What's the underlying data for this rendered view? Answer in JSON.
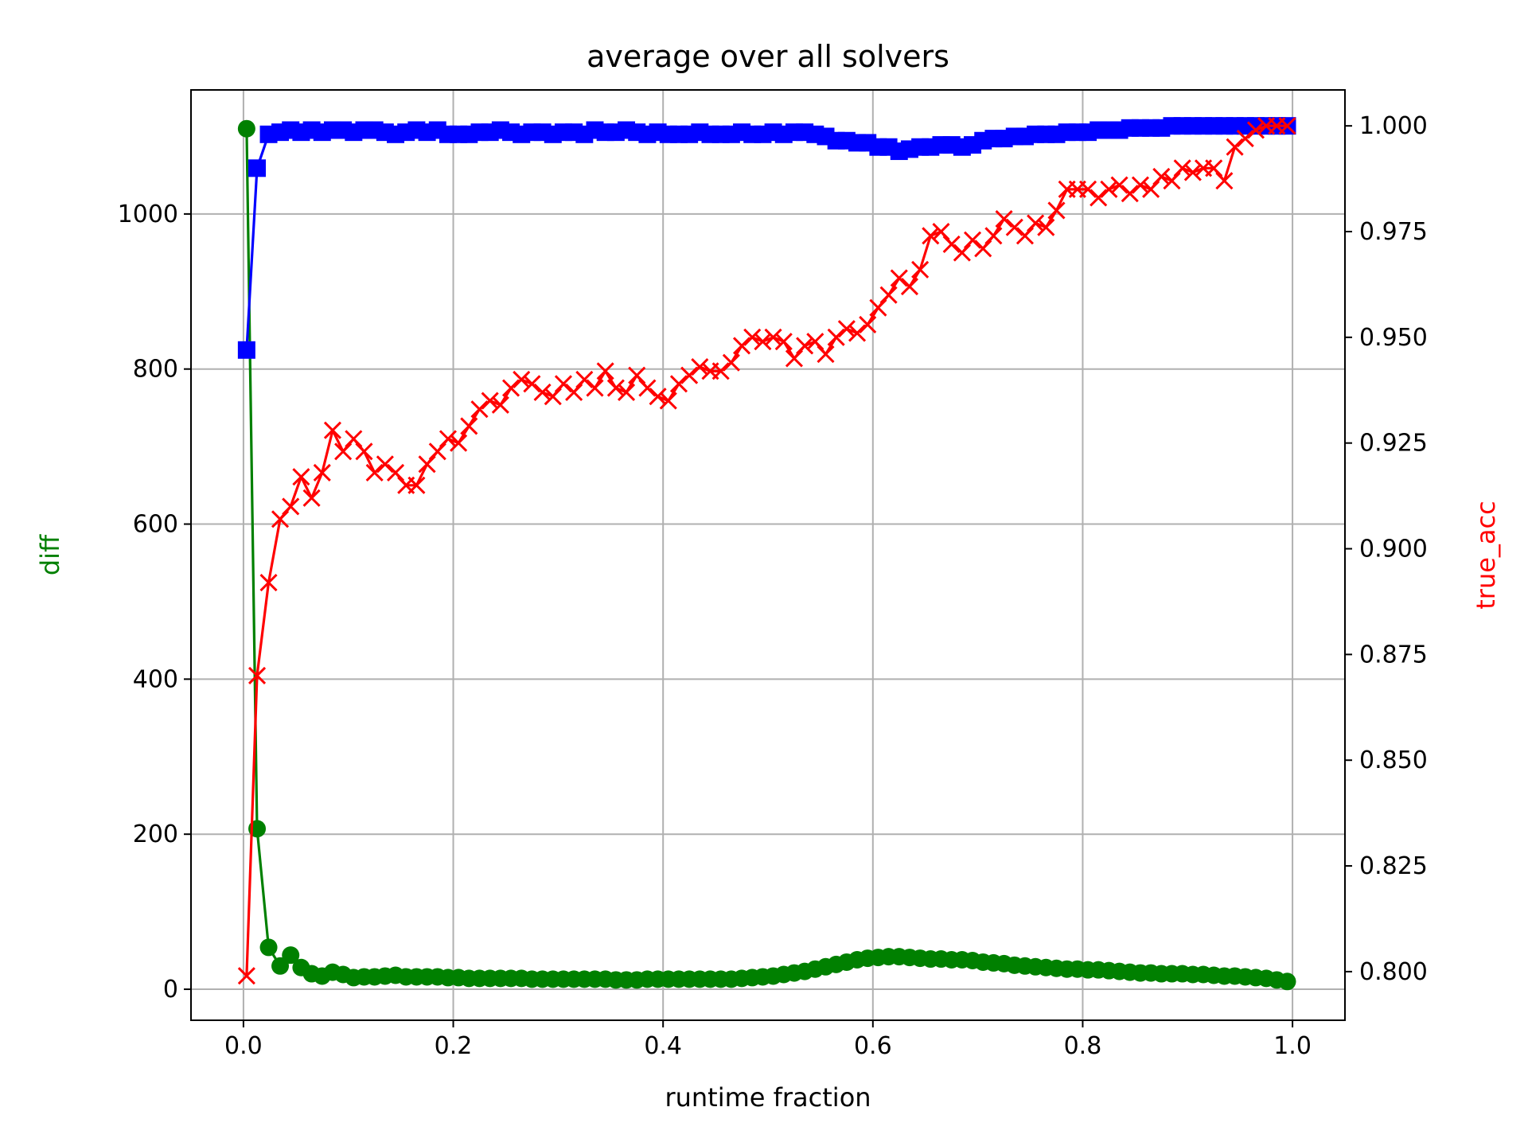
{
  "chart_data": {
    "type": "line",
    "title": "average over all solvers",
    "xlabel": "runtime fraction",
    "ylabel_left": "diff",
    "ylabel_right": "true_acc",
    "xlim": [
      -0.05,
      1.05
    ],
    "ylim_left": [
      -40,
      1160
    ],
    "ylim_right": [
      0.7885,
      1.0085
    ],
    "x_ticks": [
      0.0,
      0.2,
      0.4,
      0.6,
      0.8,
      1.0
    ],
    "x_tick_labels": [
      "0.0",
      "0.2",
      "0.4",
      "0.6",
      "0.8",
      "1.0"
    ],
    "y_left_ticks": [
      0,
      200,
      400,
      600,
      800,
      1000
    ],
    "y_left_tick_labels": [
      "0",
      "200",
      "400",
      "600",
      "800",
      "1000"
    ],
    "y_right_ticks": [
      0.8,
      0.825,
      0.85,
      0.875,
      0.9,
      0.925,
      0.95,
      0.975,
      1.0
    ],
    "y_right_tick_labels": [
      "0.800",
      "0.825",
      "0.850",
      "0.875",
      "0.900",
      "0.925",
      "0.950",
      "0.975",
      "1.000"
    ],
    "grid": true,
    "colors": {
      "diff": "#008000",
      "blue_series": "#0000ff",
      "true_acc": "#ff0000",
      "grid": "#b0b0b0",
      "axes": "#000000",
      "ylabel_left": "#008000",
      "ylabel_right": "#ff0000"
    },
    "series": [
      {
        "key": "diff",
        "axis": "left",
        "marker": "circle",
        "color": "#008000",
        "x": [
          0.003,
          0.013,
          0.024,
          0.035,
          0.045,
          0.055,
          0.065,
          0.075,
          0.085,
          0.095,
          0.105,
          0.115,
          0.125,
          0.135,
          0.145,
          0.155,
          0.165,
          0.175,
          0.185,
          0.195,
          0.205,
          0.215,
          0.225,
          0.235,
          0.245,
          0.255,
          0.265,
          0.275,
          0.285,
          0.295,
          0.305,
          0.315,
          0.325,
          0.335,
          0.345,
          0.355,
          0.365,
          0.375,
          0.385,
          0.395,
          0.405,
          0.415,
          0.425,
          0.435,
          0.445,
          0.455,
          0.465,
          0.475,
          0.485,
          0.495,
          0.505,
          0.515,
          0.525,
          0.535,
          0.545,
          0.555,
          0.565,
          0.575,
          0.585,
          0.595,
          0.605,
          0.615,
          0.625,
          0.635,
          0.645,
          0.655,
          0.665,
          0.675,
          0.685,
          0.695,
          0.705,
          0.715,
          0.725,
          0.735,
          0.745,
          0.755,
          0.765,
          0.775,
          0.785,
          0.795,
          0.805,
          0.815,
          0.825,
          0.835,
          0.845,
          0.855,
          0.865,
          0.875,
          0.885,
          0.895,
          0.905,
          0.915,
          0.925,
          0.935,
          0.945,
          0.955,
          0.965,
          0.975,
          0.985,
          0.995
        ],
        "y": [
          1110,
          207,
          54,
          30,
          44,
          28,
          20,
          17,
          22,
          19,
          15,
          16,
          16,
          17,
          18,
          16,
          16,
          16,
          16,
          15,
          15,
          14,
          14,
          14,
          14,
          14,
          14,
          13,
          13,
          13,
          13,
          13,
          13,
          13,
          13,
          12,
          12,
          12,
          13,
          13,
          13,
          13,
          13,
          13,
          13,
          13,
          13,
          14,
          15,
          16,
          17,
          19,
          21,
          23,
          26,
          29,
          32,
          35,
          38,
          40,
          41,
          42,
          42,
          41,
          40,
          39,
          39,
          38,
          38,
          37,
          35,
          34,
          33,
          31,
          30,
          29,
          28,
          27,
          26,
          26,
          25,
          25,
          24,
          23,
          22,
          21,
          21,
          20,
          20,
          20,
          19,
          19,
          18,
          17,
          17,
          16,
          15,
          14,
          12,
          10
        ]
      },
      {
        "key": "blue_series",
        "axis": "right",
        "marker": "square",
        "color": "#0000ff",
        "x": [
          0.003,
          0.013,
          0.024,
          0.035,
          0.045,
          0.055,
          0.065,
          0.075,
          0.085,
          0.095,
          0.105,
          0.115,
          0.125,
          0.135,
          0.145,
          0.155,
          0.165,
          0.175,
          0.185,
          0.195,
          0.205,
          0.215,
          0.225,
          0.235,
          0.245,
          0.255,
          0.265,
          0.275,
          0.285,
          0.295,
          0.305,
          0.315,
          0.325,
          0.335,
          0.345,
          0.355,
          0.365,
          0.375,
          0.385,
          0.395,
          0.405,
          0.415,
          0.425,
          0.435,
          0.445,
          0.455,
          0.465,
          0.475,
          0.485,
          0.495,
          0.505,
          0.515,
          0.525,
          0.535,
          0.545,
          0.555,
          0.565,
          0.575,
          0.585,
          0.595,
          0.605,
          0.615,
          0.625,
          0.635,
          0.645,
          0.655,
          0.665,
          0.675,
          0.685,
          0.695,
          0.705,
          0.715,
          0.725,
          0.735,
          0.745,
          0.755,
          0.765,
          0.775,
          0.785,
          0.795,
          0.805,
          0.815,
          0.825,
          0.835,
          0.845,
          0.855,
          0.865,
          0.875,
          0.885,
          0.895,
          0.905,
          0.915,
          0.925,
          0.935,
          0.945,
          0.955,
          0.965,
          0.975,
          0.985,
          0.995
        ],
        "y": [
          0.947,
          0.99,
          0.998,
          0.9985,
          0.999,
          0.9985,
          0.999,
          0.9985,
          0.999,
          0.999,
          0.9985,
          0.999,
          0.999,
          0.9985,
          0.998,
          0.9985,
          0.999,
          0.9985,
          0.999,
          0.998,
          0.998,
          0.998,
          0.9985,
          0.9985,
          0.999,
          0.9985,
          0.998,
          0.9985,
          0.9985,
          0.998,
          0.9985,
          0.9985,
          0.998,
          0.999,
          0.9985,
          0.9985,
          0.999,
          0.9985,
          0.998,
          0.9985,
          0.998,
          0.998,
          0.998,
          0.9985,
          0.998,
          0.998,
          0.998,
          0.9985,
          0.998,
          0.998,
          0.9985,
          0.998,
          0.9985,
          0.9985,
          0.998,
          0.9975,
          0.9965,
          0.9965,
          0.996,
          0.996,
          0.995,
          0.995,
          0.994,
          0.9945,
          0.995,
          0.995,
          0.9955,
          0.9955,
          0.995,
          0.9955,
          0.9965,
          0.997,
          0.997,
          0.9975,
          0.9975,
          0.998,
          0.998,
          0.998,
          0.9985,
          0.9985,
          0.9985,
          0.999,
          0.999,
          0.999,
          0.9995,
          0.9995,
          0.9995,
          0.9995,
          1.0,
          1.0,
          1.0,
          1.0,
          1.0,
          1.0,
          1.0,
          1.0,
          1.0,
          1.0,
          1.0,
          1.0
        ]
      },
      {
        "key": "true_acc",
        "axis": "right",
        "marker": "x",
        "color": "#ff0000",
        "x": [
          0.003,
          0.013,
          0.024,
          0.035,
          0.045,
          0.055,
          0.065,
          0.075,
          0.085,
          0.095,
          0.105,
          0.115,
          0.125,
          0.135,
          0.145,
          0.155,
          0.165,
          0.175,
          0.185,
          0.195,
          0.205,
          0.215,
          0.225,
          0.235,
          0.245,
          0.255,
          0.265,
          0.275,
          0.285,
          0.295,
          0.305,
          0.315,
          0.325,
          0.335,
          0.345,
          0.355,
          0.365,
          0.375,
          0.385,
          0.395,
          0.405,
          0.415,
          0.425,
          0.435,
          0.445,
          0.455,
          0.465,
          0.475,
          0.485,
          0.495,
          0.505,
          0.515,
          0.525,
          0.535,
          0.545,
          0.555,
          0.565,
          0.575,
          0.585,
          0.595,
          0.605,
          0.615,
          0.625,
          0.635,
          0.645,
          0.655,
          0.665,
          0.675,
          0.685,
          0.695,
          0.705,
          0.715,
          0.725,
          0.735,
          0.745,
          0.755,
          0.765,
          0.775,
          0.785,
          0.795,
          0.805,
          0.815,
          0.825,
          0.835,
          0.845,
          0.855,
          0.865,
          0.875,
          0.885,
          0.895,
          0.905,
          0.915,
          0.925,
          0.935,
          0.945,
          0.955,
          0.965,
          0.975,
          0.985,
          0.995
        ],
        "y": [
          0.799,
          0.87,
          0.892,
          0.907,
          0.91,
          0.917,
          0.912,
          0.918,
          0.928,
          0.923,
          0.926,
          0.923,
          0.918,
          0.92,
          0.918,
          0.915,
          0.915,
          0.92,
          0.923,
          0.926,
          0.925,
          0.929,
          0.933,
          0.935,
          0.934,
          0.938,
          0.94,
          0.939,
          0.937,
          0.936,
          0.939,
          0.937,
          0.94,
          0.938,
          0.942,
          0.938,
          0.937,
          0.941,
          0.938,
          0.936,
          0.935,
          0.939,
          0.941,
          0.943,
          0.942,
          0.942,
          0.944,
          0.948,
          0.95,
          0.949,
          0.95,
          0.949,
          0.945,
          0.948,
          0.949,
          0.946,
          0.95,
          0.952,
          0.951,
          0.953,
          0.957,
          0.96,
          0.964,
          0.962,
          0.966,
          0.974,
          0.975,
          0.972,
          0.97,
          0.973,
          0.971,
          0.974,
          0.978,
          0.976,
          0.974,
          0.977,
          0.976,
          0.98,
          0.985,
          0.985,
          0.985,
          0.983,
          0.985,
          0.986,
          0.984,
          0.986,
          0.985,
          0.988,
          0.987,
          0.99,
          0.989,
          0.99,
          0.99,
          0.987,
          0.995,
          0.997,
          0.999,
          1.0,
          1.0,
          1.0
        ]
      }
    ]
  }
}
